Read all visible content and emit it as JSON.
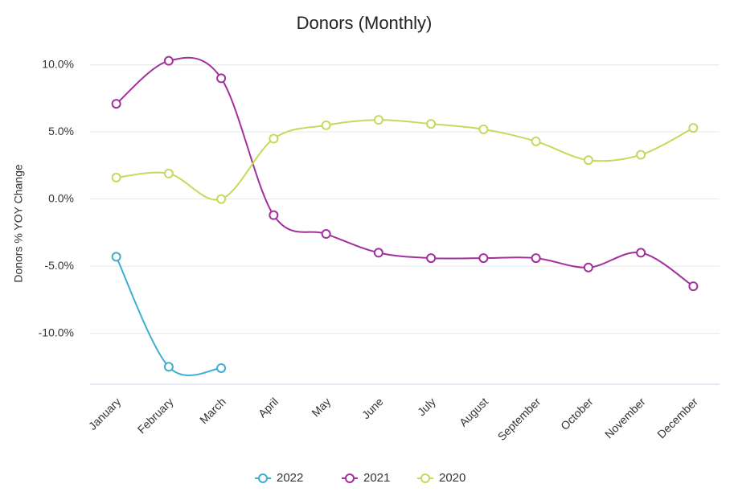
{
  "chart_data": {
    "type": "line",
    "title": "Donors (Monthly)",
    "y_label": "Donors % YOY Change",
    "categories": [
      "January",
      "February",
      "March",
      "April",
      "May",
      "June",
      "July",
      "August",
      "September",
      "October",
      "November",
      "December"
    ],
    "series": [
      {
        "name": "2022",
        "color": "#3daed1",
        "values": [
          -4.3,
          -12.5,
          -12.6,
          null,
          null,
          null,
          null,
          null,
          null,
          null,
          null,
          null
        ]
      },
      {
        "name": "2021",
        "color": "#a2309c",
        "values": [
          7.1,
          10.3,
          9.0,
          -1.2,
          -2.6,
          -4.0,
          -4.4,
          -4.4,
          -4.4,
          -5.1,
          -4.0,
          -6.5
        ]
      },
      {
        "name": "2020",
        "color": "#c4da5c",
        "values": [
          1.6,
          1.9,
          0.0,
          4.5,
          5.5,
          5.9,
          5.6,
          5.2,
          4.3,
          2.9,
          3.3,
          5.3
        ]
      }
    ],
    "ylim": [
      -13.8,
      11
    ],
    "yticks": [
      {
        "value": 10,
        "label": "10.0%"
      },
      {
        "value": 5,
        "label": "5.0%"
      },
      {
        "value": 0,
        "label": "0.0%"
      },
      {
        "value": -5,
        "label": "-5.0%"
      },
      {
        "value": -10,
        "label": "-10.0%"
      }
    ],
    "grid": true,
    "legend": "bottom"
  }
}
